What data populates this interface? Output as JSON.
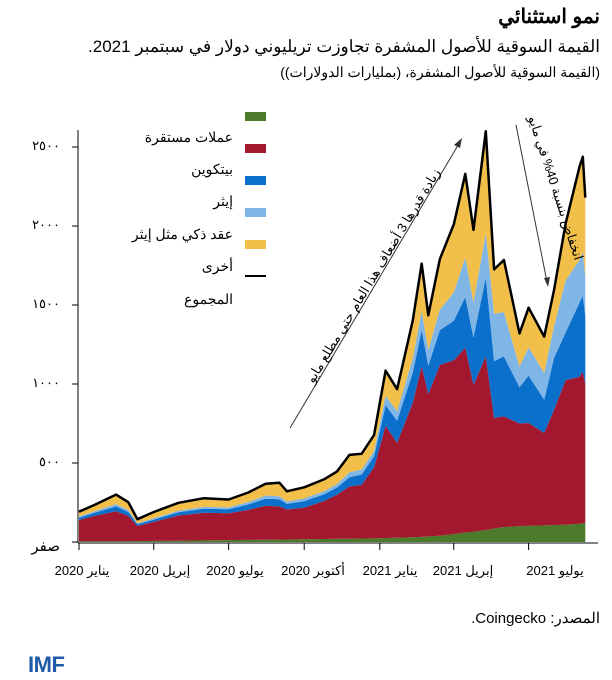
{
  "header": {
    "title": "نمو استثنائي",
    "subtitle": "القيمة السوقية للأصول المشفرة تجاوزت تريليوني دولار في سبتمبر 2021.",
    "units": "(القيمة السوقية للأصول المشفرة، (بمليارات الدولارات))"
  },
  "footer": {
    "source": "المصدر: Coingecko.",
    "logo": "IMF"
  },
  "chart_data": {
    "type": "area",
    "stacked": true,
    "title": "نمو استثنائي",
    "ylim": [
      0,
      2700
    ],
    "y_ticks": [
      0,
      500,
      1000,
      1500,
      2000,
      2500
    ],
    "y_tick_labels": [
      "صفر",
      "٥٠٠",
      "١٠٠٠",
      "١٥٠٠",
      "٢٠٠٠",
      "٢٥٠٠"
    ],
    "x_ticks": [
      "2020-01-01",
      "2020-04-01",
      "2020-07-01",
      "2020-10-01",
      "2021-01-01",
      "2021-04-01",
      "2021-07-01"
    ],
    "x_tick_labels": [
      "يناير 2020",
      "إبريل 2020",
      "يوليو 2020",
      "أكتوبر 2020",
      "يناير 2021",
      "إبريل 2021",
      "يوليو 2021"
    ],
    "legend_labels": [
      "عملات مستقرة",
      "بيتكوين",
      "إيثر",
      "عقد ذكي مثل إيثر",
      "أخرى",
      "المجموع"
    ],
    "legend_placement": "top-left",
    "dates": [
      "2020-01-01",
      "2020-01-20",
      "2020-02-15",
      "2020-03-01",
      "2020-03-12",
      "2020-04-01",
      "2020-05-01",
      "2020-06-01",
      "2020-07-01",
      "2020-07-25",
      "2020-08-15",
      "2020-09-01",
      "2020-09-10",
      "2020-10-01",
      "2020-10-25",
      "2020-11-10",
      "2020-11-25",
      "2020-12-10",
      "2020-12-25",
      "2021-01-08",
      "2021-01-22",
      "2021-02-10",
      "2021-02-21",
      "2021-03-01",
      "2021-03-15",
      "2021-04-01",
      "2021-04-15",
      "2021-04-25",
      "2021-05-10",
      "2021-05-20",
      "2021-06-01",
      "2021-06-20",
      "2021-07-01",
      "2021-07-20",
      "2021-08-01",
      "2021-08-15",
      "2021-09-01",
      "2021-09-05",
      "2021-09-08"
    ],
    "series": [
      {
        "key": "stablecoins",
        "color": "#4a7a2a",
        "values": [
          5,
          5,
          5,
          5,
          6,
          7,
          8,
          10,
          12,
          13,
          14,
          15,
          16,
          18,
          19,
          20,
          21,
          22,
          23,
          25,
          27,
          30,
          32,
          35,
          40,
          50,
          60,
          65,
          75,
          85,
          95,
          100,
          103,
          105,
          107,
          110,
          115,
          118,
          120
        ]
      },
      {
        "key": "bitcoin",
        "color": "#a3182e",
        "values": [
          134,
          160,
          190,
          160,
          95,
          120,
          160,
          175,
          170,
          190,
          215,
          210,
          190,
          200,
          240,
          280,
          330,
          340,
          450,
          710,
          600,
          850,
          1080,
          900,
          1080,
          1100,
          1170,
          930,
          1100,
          700,
          700,
          650,
          650,
          585,
          730,
          915,
          930,
          960,
          880
        ]
      },
      {
        "key": "ether",
        "color": "#0b6fcc",
        "values": [
          15,
          20,
          30,
          25,
          12,
          15,
          20,
          25,
          25,
          35,
          45,
          45,
          35,
          40,
          42,
          45,
          60,
          65,
          70,
          130,
          140,
          190,
          230,
          180,
          220,
          250,
          320,
          300,
          500,
          360,
          380,
          230,
          300,
          210,
          330,
          300,
          470,
          480,
          430
        ]
      },
      {
        "key": "smart-contract",
        "color": "#80b6e6",
        "values": [
          8,
          10,
          15,
          12,
          6,
          8,
          10,
          12,
          12,
          15,
          20,
          20,
          15,
          18,
          20,
          22,
          30,
          32,
          35,
          60,
          60,
          90,
          120,
          100,
          130,
          180,
          250,
          220,
          280,
          300,
          280,
          130,
          180,
          170,
          200,
          330,
          270,
          280,
          250
        ]
      },
      {
        "key": "other",
        "color": "#f2bf4b",
        "values": [
          30,
          40,
          60,
          50,
          25,
          40,
          50,
          55,
          50,
          60,
          75,
          85,
          65,
          70,
          75,
          80,
          110,
          100,
          100,
          160,
          140,
          240,
          300,
          220,
          320,
          430,
          530,
          460,
          645,
          280,
          330,
          210,
          250,
          230,
          230,
          360,
          590,
          600,
          500
        ]
      }
    ],
    "total_color": "#000000",
    "annotations": [
      "زيادة قدرها 3 أضعاف هذا العام حتى مطلع مايو",
      "انخفاض بنسبة 40% في مايو"
    ]
  }
}
